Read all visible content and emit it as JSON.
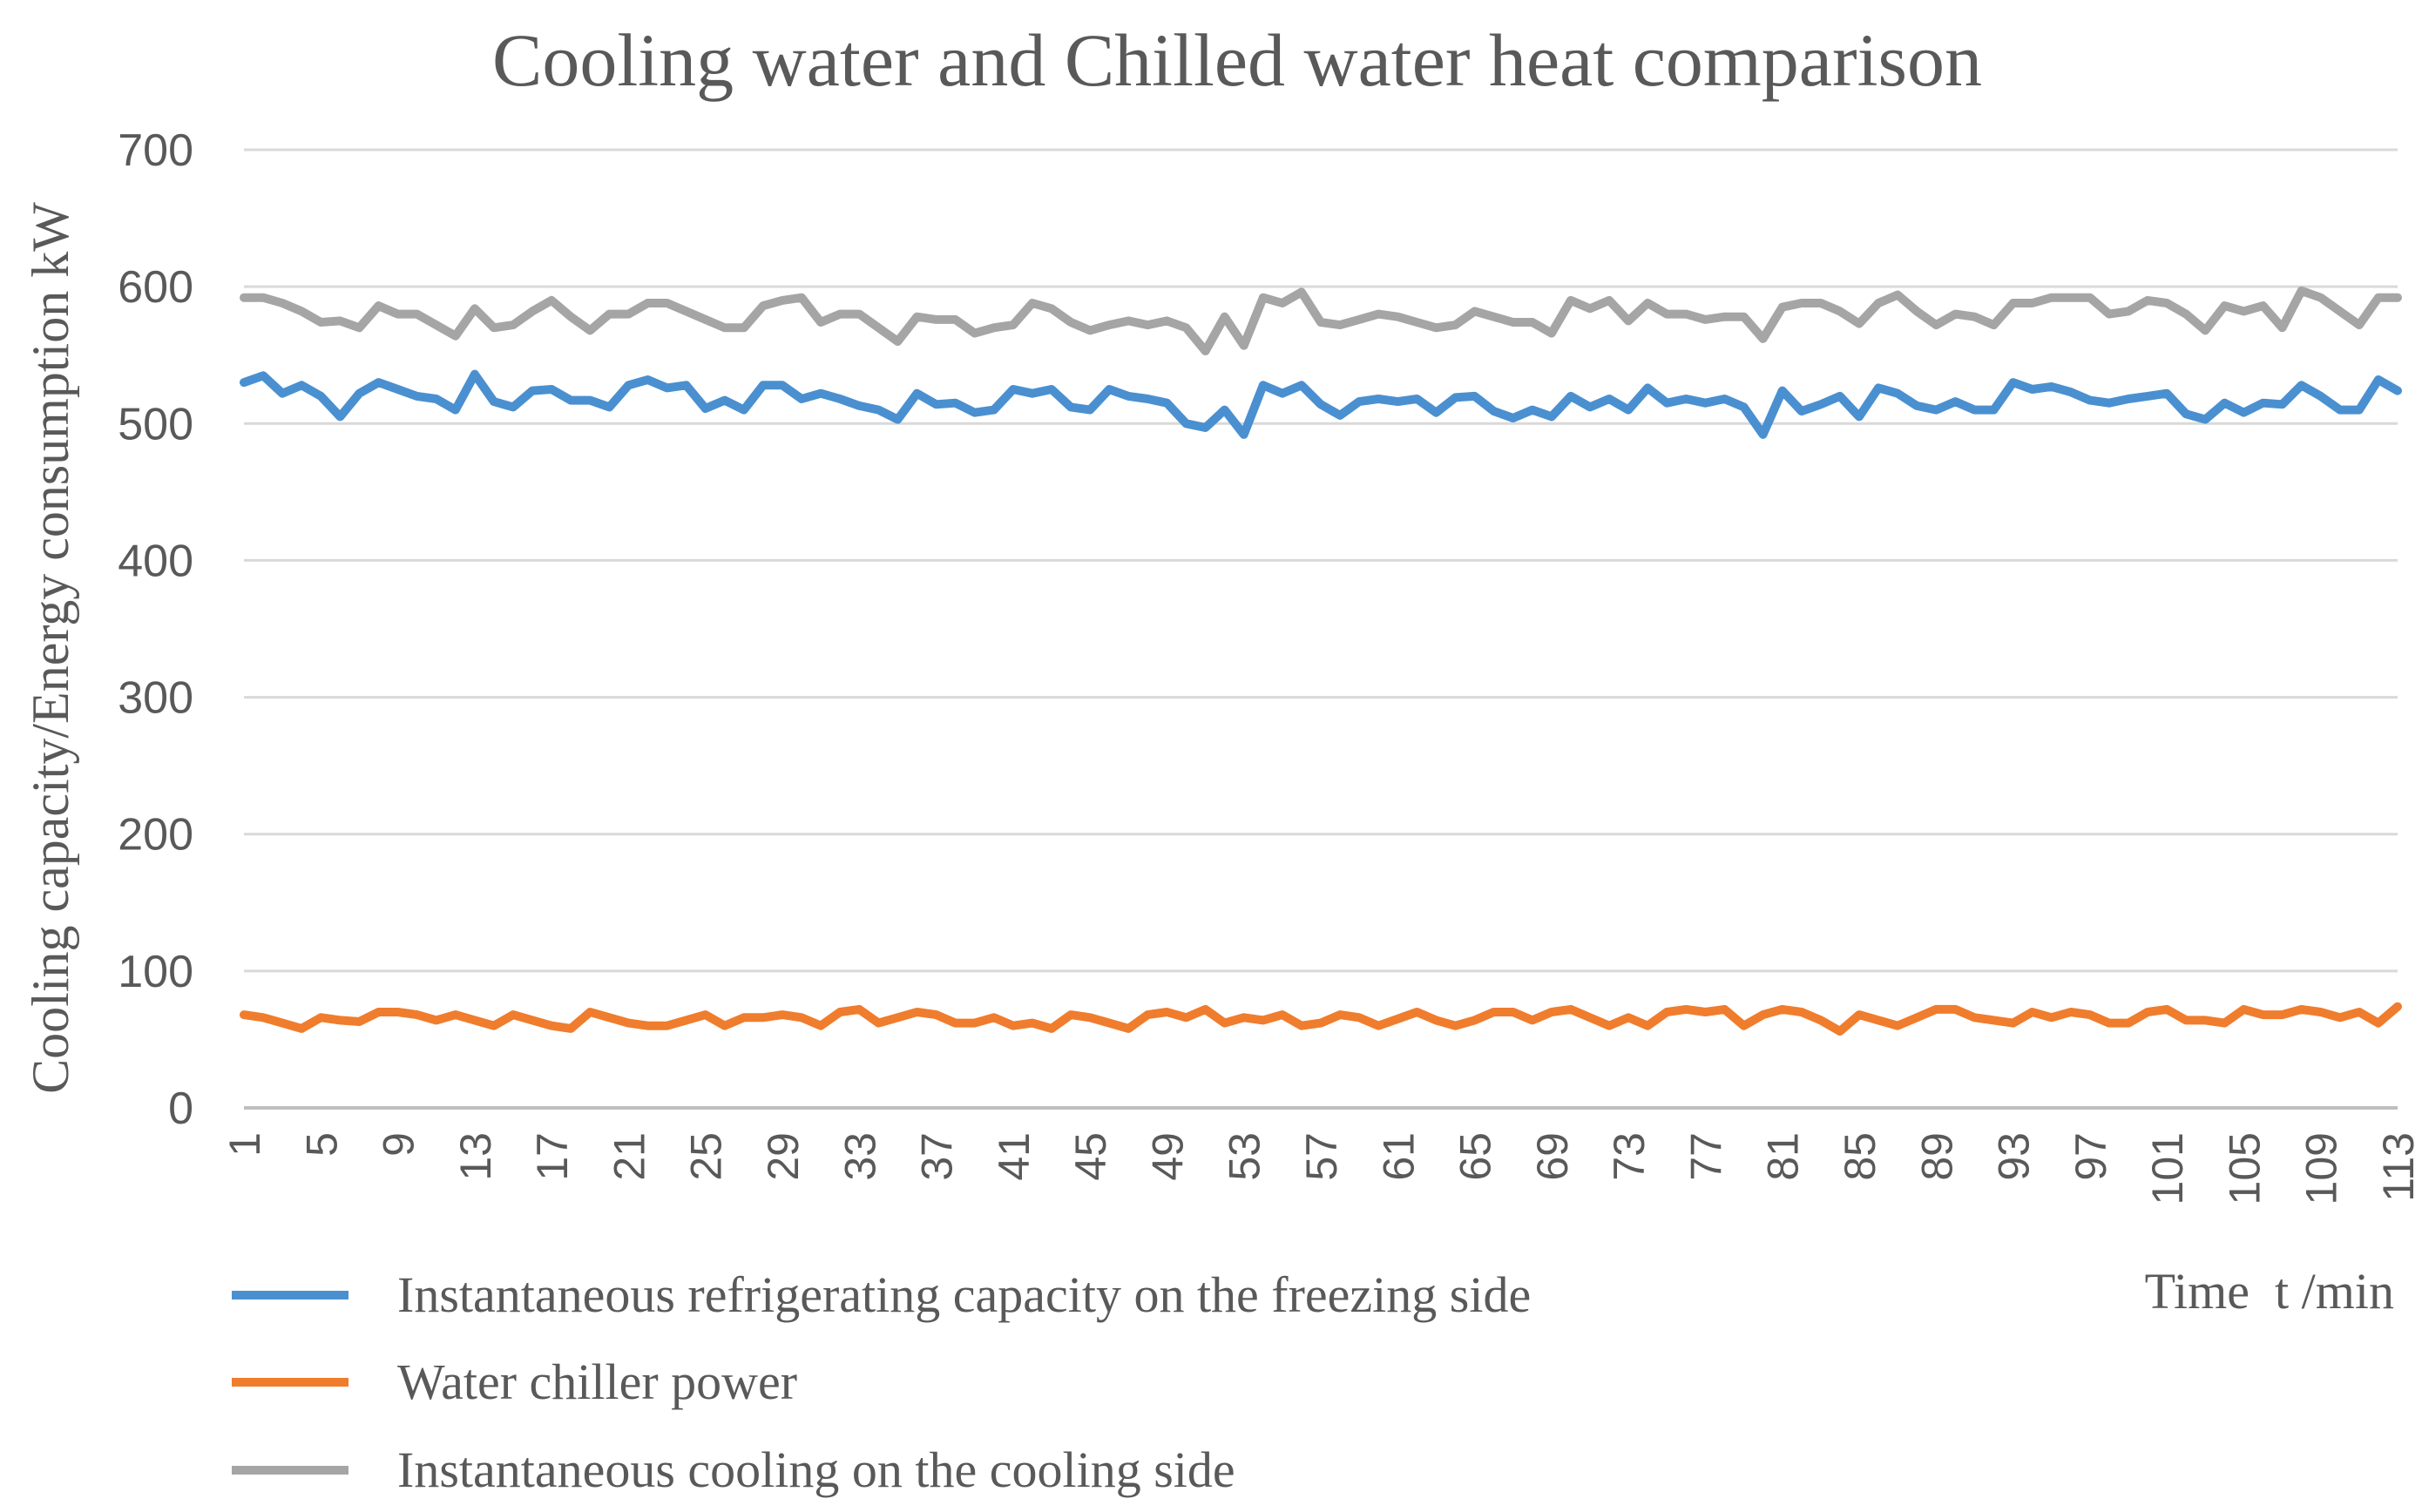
{
  "chart_data": {
    "type": "line",
    "title": "Cooling water and Chilled water heat comparison",
    "ylabel": "Cooling capacity/Energy consumption  kW",
    "xlabel": "Time  t /min",
    "ylim": [
      0,
      700
    ],
    "yticks": [
      0,
      100,
      200,
      300,
      400,
      500,
      600,
      700
    ],
    "xlim": [
      1,
      113
    ],
    "xticks": [
      "1",
      "5",
      "9",
      "13",
      "17",
      "21",
      "25",
      "29",
      "33",
      "37",
      "41",
      "45",
      "49",
      "53",
      "57",
      "61",
      "65",
      "69",
      "73",
      "77",
      "81",
      "85",
      "89",
      "93",
      "97",
      "101",
      "105",
      "109",
      "113"
    ],
    "grid": true,
    "legend_position": "bottom-left",
    "series": [
      {
        "name": "Instantaneous refrigerating capacity on the freezing side",
        "color": "#4a90d0",
        "x": [
          1,
          2,
          3,
          4,
          5,
          6,
          7,
          8,
          9,
          10,
          11,
          12,
          13,
          14,
          15,
          16,
          17,
          18,
          19,
          20,
          21,
          22,
          23,
          24,
          25,
          26,
          27,
          28,
          29,
          30,
          31,
          32,
          33,
          34,
          35,
          36,
          37,
          38,
          39,
          40,
          41,
          42,
          43,
          44,
          45,
          46,
          47,
          48,
          49,
          50,
          51,
          52,
          53,
          54,
          55,
          56,
          57,
          58,
          59,
          60,
          61,
          62,
          63,
          64,
          65,
          66,
          67,
          68,
          69,
          70,
          71,
          72,
          73,
          74,
          75,
          76,
          77,
          78,
          79,
          80,
          81,
          82,
          83,
          84,
          85,
          86,
          87,
          88,
          89,
          90,
          91,
          92,
          93,
          94,
          95,
          96,
          97,
          98,
          99,
          100,
          101,
          102,
          103,
          104,
          105,
          106,
          107,
          108,
          109,
          110,
          111,
          112,
          113
        ],
        "values": [
          530,
          535,
          522,
          528,
          520,
          505,
          522,
          530,
          525,
          520,
          518,
          510,
          536,
          516,
          512,
          524,
          525,
          517,
          517,
          512,
          528,
          532,
          526,
          528,
          511,
          517,
          510,
          528,
          528,
          518,
          522,
          518,
          513,
          510,
          503,
          522,
          514,
          515,
          508,
          510,
          525,
          522,
          525,
          512,
          510,
          525,
          520,
          518,
          515,
          500,
          497,
          510,
          492,
          528,
          522,
          528,
          514,
          506,
          516,
          518,
          516,
          518,
          508,
          519,
          520,
          509,
          504,
          510,
          505,
          520,
          512,
          518,
          510,
          526,
          515,
          518,
          515,
          518,
          512,
          492,
          524,
          509,
          514,
          520,
          505,
          526,
          522,
          513,
          510,
          516,
          510,
          510,
          530,
          525,
          527,
          523,
          517,
          515,
          518,
          520,
          522,
          507,
          503,
          515,
          508,
          515,
          514,
          528,
          520,
          510,
          510,
          532,
          524
        ]
      },
      {
        "name": "Water chiller power",
        "color": "#ef7d2d",
        "x": [
          1,
          2,
          3,
          4,
          5,
          6,
          7,
          8,
          9,
          10,
          11,
          12,
          13,
          14,
          15,
          16,
          17,
          18,
          19,
          20,
          21,
          22,
          23,
          24,
          25,
          26,
          27,
          28,
          29,
          30,
          31,
          32,
          33,
          34,
          35,
          36,
          37,
          38,
          39,
          40,
          41,
          42,
          43,
          44,
          45,
          46,
          47,
          48,
          49,
          50,
          51,
          52,
          53,
          54,
          55,
          56,
          57,
          58,
          59,
          60,
          61,
          62,
          63,
          64,
          65,
          66,
          67,
          68,
          69,
          70,
          71,
          72,
          73,
          74,
          75,
          76,
          77,
          78,
          79,
          80,
          81,
          82,
          83,
          84,
          85,
          86,
          87,
          88,
          89,
          90,
          91,
          92,
          93,
          94,
          95,
          96,
          97,
          98,
          99,
          100,
          101,
          102,
          103,
          104,
          105,
          106,
          107,
          108,
          109,
          110,
          111,
          112,
          113
        ],
        "values": [
          68,
          66,
          62,
          58,
          66,
          64,
          63,
          70,
          70,
          68,
          64,
          68,
          64,
          60,
          68,
          64,
          60,
          58,
          70,
          66,
          62,
          60,
          60,
          64,
          68,
          60,
          66,
          66,
          68,
          66,
          60,
          70,
          72,
          62,
          66,
          70,
          68,
          62,
          62,
          66,
          60,
          62,
          58,
          68,
          66,
          62,
          58,
          68,
          70,
          66,
          72,
          62,
          66,
          64,
          68,
          60,
          62,
          68,
          66,
          60,
          65,
          70,
          64,
          60,
          64,
          70,
          70,
          64,
          70,
          72,
          66,
          60,
          66,
          60,
          70,
          72,
          70,
          72,
          60,
          68,
          72,
          70,
          64,
          56,
          68,
          64,
          60,
          66,
          72,
          72,
          66,
          64,
          62,
          70,
          66,
          70,
          68,
          62,
          62,
          70,
          72,
          64,
          64,
          62,
          72,
          68,
          68,
          72,
          70,
          66,
          70,
          62,
          74
        ]
      },
      {
        "name": "Instantaneous cooling on the cooling side",
        "color": "#a5a5a5",
        "x": [
          1,
          2,
          3,
          4,
          5,
          6,
          7,
          8,
          9,
          10,
          11,
          12,
          13,
          14,
          15,
          16,
          17,
          18,
          19,
          20,
          21,
          22,
          23,
          24,
          25,
          26,
          27,
          28,
          29,
          30,
          31,
          32,
          33,
          34,
          35,
          36,
          37,
          38,
          39,
          40,
          41,
          42,
          43,
          44,
          45,
          46,
          47,
          48,
          49,
          50,
          51,
          52,
          53,
          54,
          55,
          56,
          57,
          58,
          59,
          60,
          61,
          62,
          63,
          64,
          65,
          66,
          67,
          68,
          69,
          70,
          71,
          72,
          73,
          74,
          75,
          76,
          77,
          78,
          79,
          80,
          81,
          82,
          83,
          84,
          85,
          86,
          87,
          88,
          89,
          90,
          91,
          92,
          93,
          94,
          95,
          96,
          97,
          98,
          99,
          100,
          101,
          102,
          103,
          104,
          105,
          106,
          107,
          108,
          109,
          110,
          111,
          112,
          113
        ],
        "values": [
          592,
          592,
          588,
          582,
          574,
          575,
          570,
          586,
          580,
          580,
          572,
          564,
          584,
          570,
          572,
          582,
          590,
          578,
          568,
          580,
          580,
          588,
          588,
          582,
          576,
          570,
          570,
          586,
          590,
          592,
          574,
          580,
          580,
          570,
          560,
          578,
          576,
          576,
          566,
          570,
          572,
          588,
          584,
          574,
          568,
          572,
          575,
          572,
          575,
          570,
          553,
          578,
          557,
          592,
          588,
          596,
          574,
          572,
          576,
          580,
          578,
          574,
          570,
          572,
          582,
          578,
          574,
          574,
          566,
          590,
          584,
          590,
          575,
          588,
          580,
          580,
          576,
          578,
          578,
          562,
          585,
          588,
          588,
          582,
          573,
          588,
          594,
          582,
          572,
          580,
          578,
          572,
          588,
          588,
          592,
          592,
          592,
          580,
          582,
          590,
          588,
          580,
          568,
          586,
          582,
          586,
          570,
          597,
          592,
          582,
          572,
          592,
          592
        ]
      }
    ]
  }
}
